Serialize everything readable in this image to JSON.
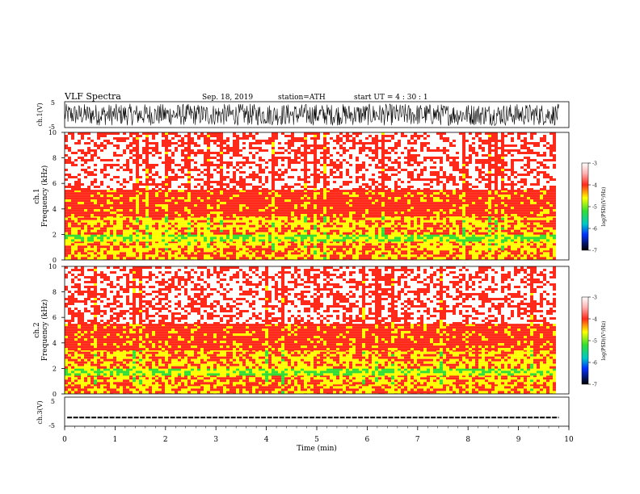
{
  "header": {
    "title": "VLF  Spectra",
    "date": "Sep. 18, 2019",
    "station": "station=ATH",
    "start_ut": "start  UT  =   4  : 30 : 1"
  },
  "colors": {
    "waveform": "#000000",
    "spectrogram_low": "#ffffff",
    "spectrogram_mid": "#ff2a1a",
    "spectrogram_high": "#ffff00",
    "spectrogram_peak": "#33dd33"
  },
  "chart_data": [
    {
      "type": "line",
      "panel": "ch1-waveform",
      "ylabel": "ch.1(V)",
      "ylim": [
        -5,
        5
      ],
      "xlim": [
        0,
        10
      ],
      "y_ticks": [
        "5",
        "-5"
      ],
      "description_of_trace": "dense oscillating waveform filling most of the range from 0 to ~9.8 min"
    },
    {
      "type": "heatmap",
      "panel": "ch1-spectrogram",
      "title_lines": [
        "ch.1",
        "Frequency  (kHz)"
      ],
      "ylim": [
        0,
        10
      ],
      "xlim": [
        0,
        10
      ],
      "y_ticks": [
        "0",
        "2",
        "4",
        "6",
        "8",
        "10"
      ],
      "bands": [
        {
          "from_khz": 0.0,
          "to_khz": 0.8,
          "level": -4.2
        },
        {
          "from_khz": 0.8,
          "to_khz": 1.5,
          "level": -4.6
        },
        {
          "from_khz": 1.5,
          "to_khz": 2.0,
          "level": -5.0
        },
        {
          "from_khz": 2.0,
          "to_khz": 3.5,
          "level": -4.4
        },
        {
          "from_khz": 3.5,
          "to_khz": 5.5,
          "level": -3.9
        },
        {
          "from_khz": 5.5,
          "to_khz": 10.0,
          "level": -3.4
        }
      ],
      "colorbar": {
        "label": "log(PSD)(V²/Hz)",
        "ticks": [
          "-3",
          "-4",
          "-5",
          "-6",
          "-7"
        ],
        "range": [
          -7,
          -3
        ]
      }
    },
    {
      "type": "heatmap",
      "panel": "ch2-spectrogram",
      "title_lines": [
        "ch.2",
        "Frequency  (kHz)"
      ],
      "ylim": [
        0,
        10
      ],
      "xlim": [
        0,
        10
      ],
      "y_ticks": [
        "0",
        "2",
        "4",
        "6",
        "8",
        "10"
      ],
      "bands": [
        {
          "from_khz": 0.0,
          "to_khz": 0.8,
          "level": -4.2
        },
        {
          "from_khz": 0.8,
          "to_khz": 1.5,
          "level": -4.6
        },
        {
          "from_khz": 1.5,
          "to_khz": 2.0,
          "level": -5.0
        },
        {
          "from_khz": 2.0,
          "to_khz": 3.5,
          "level": -4.4
        },
        {
          "from_khz": 3.5,
          "to_khz": 5.5,
          "level": -3.9
        },
        {
          "from_khz": 5.5,
          "to_khz": 10.0,
          "level": -3.4
        }
      ],
      "colorbar": {
        "label": "log(PSD)(V²/Hz)",
        "ticks": [
          "-3",
          "-4",
          "-5",
          "-6",
          "-7"
        ],
        "range": [
          -7,
          -3
        ]
      }
    },
    {
      "type": "line",
      "panel": "ch3-waveform",
      "ylabel": "ch.3(V)",
      "ylim": [
        -5,
        5
      ],
      "xlim": [
        0,
        10
      ],
      "y_ticks": [
        "5",
        "-5"
      ],
      "approx_value": -2
    }
  ],
  "x_axis": {
    "label": "Time  (min)",
    "ticks": [
      "0",
      "1",
      "2",
      "3",
      "4",
      "5",
      "6",
      "7",
      "8",
      "9",
      "10"
    ],
    "data_end_min": 9.8
  }
}
